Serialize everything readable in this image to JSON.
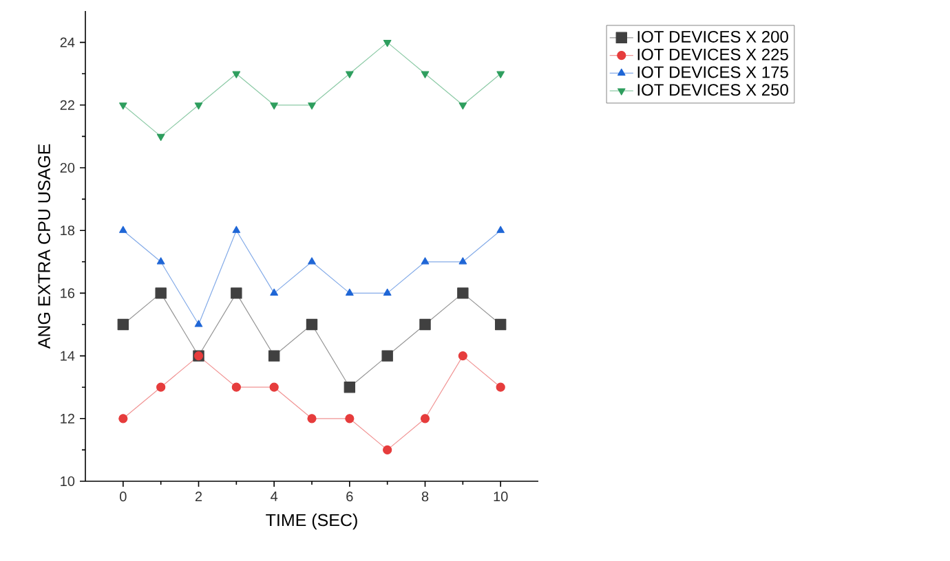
{
  "chart_data": {
    "type": "line",
    "xlabel": "TIME (SEC)",
    "ylabel": "ANG EXTRA CPU USAGE",
    "x": [
      0,
      1,
      2,
      3,
      4,
      5,
      6,
      7,
      8,
      9,
      10
    ],
    "series": [
      {
        "name": "IOT DEVICES X 200",
        "color": "#404040",
        "marker": "square",
        "values": [
          15,
          16,
          14,
          16,
          14,
          15,
          13,
          14,
          15,
          16,
          15
        ]
      },
      {
        "name": "IOT DEVICES X 225",
        "color": "#e63c3c",
        "marker": "circle",
        "values": [
          12,
          13,
          14,
          13,
          13,
          12,
          12,
          11,
          12,
          14,
          13
        ]
      },
      {
        "name": "IOT DEVICES X 175",
        "color": "#1f66d6",
        "marker": "triangle",
        "values": [
          18,
          17,
          15,
          18,
          16,
          17,
          16,
          16,
          17,
          17,
          18
        ]
      },
      {
        "name": "IOT DEVICES X 250",
        "color": "#2e9e5e",
        "marker": "triangle-down",
        "values": [
          22,
          21,
          22,
          23,
          22,
          22,
          23,
          24,
          23,
          22,
          23
        ]
      }
    ],
    "xlim": [
      -1,
      11
    ],
    "ylim": [
      10,
      25
    ],
    "xticks": [
      0,
      2,
      4,
      6,
      8,
      10
    ],
    "yticks": [
      10,
      12,
      14,
      16,
      18,
      20,
      22,
      24
    ],
    "grid": false,
    "legend": "right",
    "line_style": "solid"
  }
}
